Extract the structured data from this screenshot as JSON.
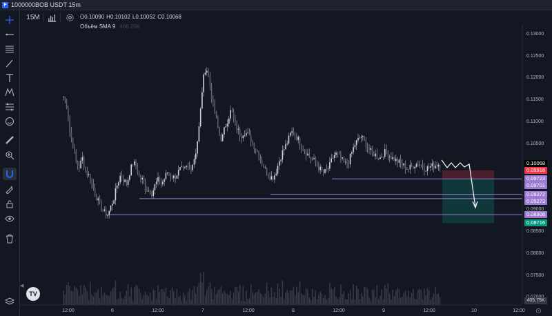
{
  "window": {
    "title": "1000000BOB USDT 15m",
    "app_icon": "F"
  },
  "toolbar": {
    "interval": "15M",
    "indicators_icon": "bar-chart-icon",
    "settings_icon": "gear-icon"
  },
  "legend": {
    "ohlc": {
      "open_label": "O",
      "open": "0.10090",
      "high_label": "H",
      "high": "0.10102",
      "low_label": "L",
      "low": "0.10052",
      "close_label": "C",
      "close": "0.10068"
    },
    "volume": {
      "label": "Объём SMA 9",
      "value": "466.25K"
    }
  },
  "left_tools": [
    {
      "icon": "crosshair-icon"
    },
    {
      "icon": "trend-line-icon"
    },
    {
      "icon": "fib-lines-icon"
    },
    {
      "icon": "brush-icon"
    },
    {
      "icon": "text-tool-icon"
    },
    {
      "icon": "pattern-icon"
    },
    {
      "icon": "prediction-tool-icon"
    },
    {
      "icon": "emoji-icon"
    },
    {
      "icon": "ruler-icon"
    },
    {
      "icon": "zoom-in-icon"
    },
    {
      "icon": "magnet-icon",
      "active": true
    },
    {
      "icon": "lock-drawing-icon"
    },
    {
      "icon": "lock-icon"
    },
    {
      "icon": "eye-icon"
    },
    {
      "icon": "trash-icon"
    },
    {
      "icon": "layers-icon"
    }
  ],
  "price_axis": [
    "0.13000",
    "0.12500",
    "0.12000",
    "0.11500",
    "0.11000",
    "0.10500",
    "0.09500",
    "0.09000",
    "0.08500",
    "0.08000",
    "0.07500",
    "0.07000"
  ],
  "price_tags": [
    {
      "value": "0.10068",
      "bg": "#000000",
      "fg": "#ffffff"
    },
    {
      "value": "0.09918",
      "bg": "#f23645",
      "fg": "#ffffff"
    },
    {
      "value": "0.09723",
      "bg": "#9c7bd4",
      "fg": "#ffffff"
    },
    {
      "value": "0.09701",
      "bg": "#9c7bd4",
      "fg": "#ffffff"
    },
    {
      "value": "0.09372",
      "bg": "#9c7bd4",
      "fg": "#ffffff"
    },
    {
      "value": "0.09273",
      "bg": "#9c7bd4",
      "fg": "#ffffff"
    },
    {
      "value": "0.08908",
      "bg": "#9c7bd4",
      "fg": "#ffffff"
    },
    {
      "value": "0.08716",
      "bg": "#089981",
      "fg": "#ffffff"
    }
  ],
  "volume_tag": "405.75K",
  "time_axis": [
    "12:00",
    "6",
    "12:00",
    "7",
    "12:00",
    "8",
    "12:00",
    "9",
    "12:00",
    "10",
    "12:00"
  ],
  "colors": {
    "background": "#131722",
    "candle": "#d1d4dc",
    "level_line": "#9c7bd4",
    "stop_zone": "#f23645",
    "target_zone": "#089981"
  },
  "chart_data": {
    "type": "candlestick",
    "symbol": "1000000BOB USDT",
    "interval": "15m",
    "x_ticks": [
      "12:00",
      "6",
      "12:00",
      "7",
      "12:00",
      "8",
      "12:00",
      "9",
      "12:00",
      "10",
      "12:00"
    ],
    "y_ticks": [
      0.13,
      0.125,
      0.12,
      0.115,
      0.11,
      0.105,
      0.095,
      0.09,
      0.085,
      0.08,
      0.075,
      0.07
    ],
    "ylim": [
      0.0685,
      0.1325
    ],
    "price_path": [
      [
        0.116,
        0.114,
        0.108,
        0.105,
        0.101,
        0.1,
        0.102,
        0.099,
        0.098,
        0.096
      ],
      [
        0.094,
        0.092,
        0.0905,
        0.0895,
        0.089,
        0.091,
        0.093,
        0.096,
        0.098,
        0.097
      ],
      [
        0.096,
        0.099,
        0.101,
        0.1,
        0.0975,
        0.097,
        0.095,
        0.0945,
        0.094,
        0.096
      ],
      [
        0.097,
        0.096,
        0.0975,
        0.099,
        0.098,
        0.0975,
        0.0985,
        0.0995,
        0.099,
        0.1
      ],
      [
        0.0995,
        0.101,
        0.104,
        0.11,
        0.119,
        0.123,
        0.12,
        0.115,
        0.112,
        0.108
      ],
      [
        0.106,
        0.109,
        0.111,
        0.113,
        0.11,
        0.1085,
        0.107,
        0.108,
        0.1075,
        0.1065
      ],
      [
        0.105,
        0.104,
        0.102,
        0.1005,
        0.099,
        0.098,
        0.0975,
        0.0985,
        0.101,
        0.103
      ],
      [
        0.1045,
        0.106,
        0.108,
        0.1075,
        0.1065,
        0.105,
        0.104,
        0.103,
        0.102,
        0.1015
      ],
      [
        0.1005,
        0.0995,
        0.0985,
        0.099,
        0.1,
        0.102,
        0.103,
        0.1025,
        0.1015,
        0.1005
      ],
      [
        0.101,
        0.103,
        0.105,
        0.106,
        0.107,
        0.106,
        0.1045,
        0.1035,
        0.103,
        0.1025
      ],
      [
        0.102,
        0.103,
        0.1035,
        0.1025,
        0.102,
        0.1015,
        0.101,
        0.1005,
        0.1,
        0.0995
      ],
      [
        0.1,
        0.1005,
        0.1008,
        0.1004,
        0.0998,
        0.0997,
        0.1,
        0.1003,
        0.1005,
        0.1007
      ]
    ],
    "levels": [
      0.09723,
      0.09372,
      0.09273,
      0.08908
    ],
    "trade_box": {
      "entry": 0.09723,
      "stop": 0.09918,
      "target": 0.08716
    },
    "volume_axis_max": "405.75K"
  }
}
